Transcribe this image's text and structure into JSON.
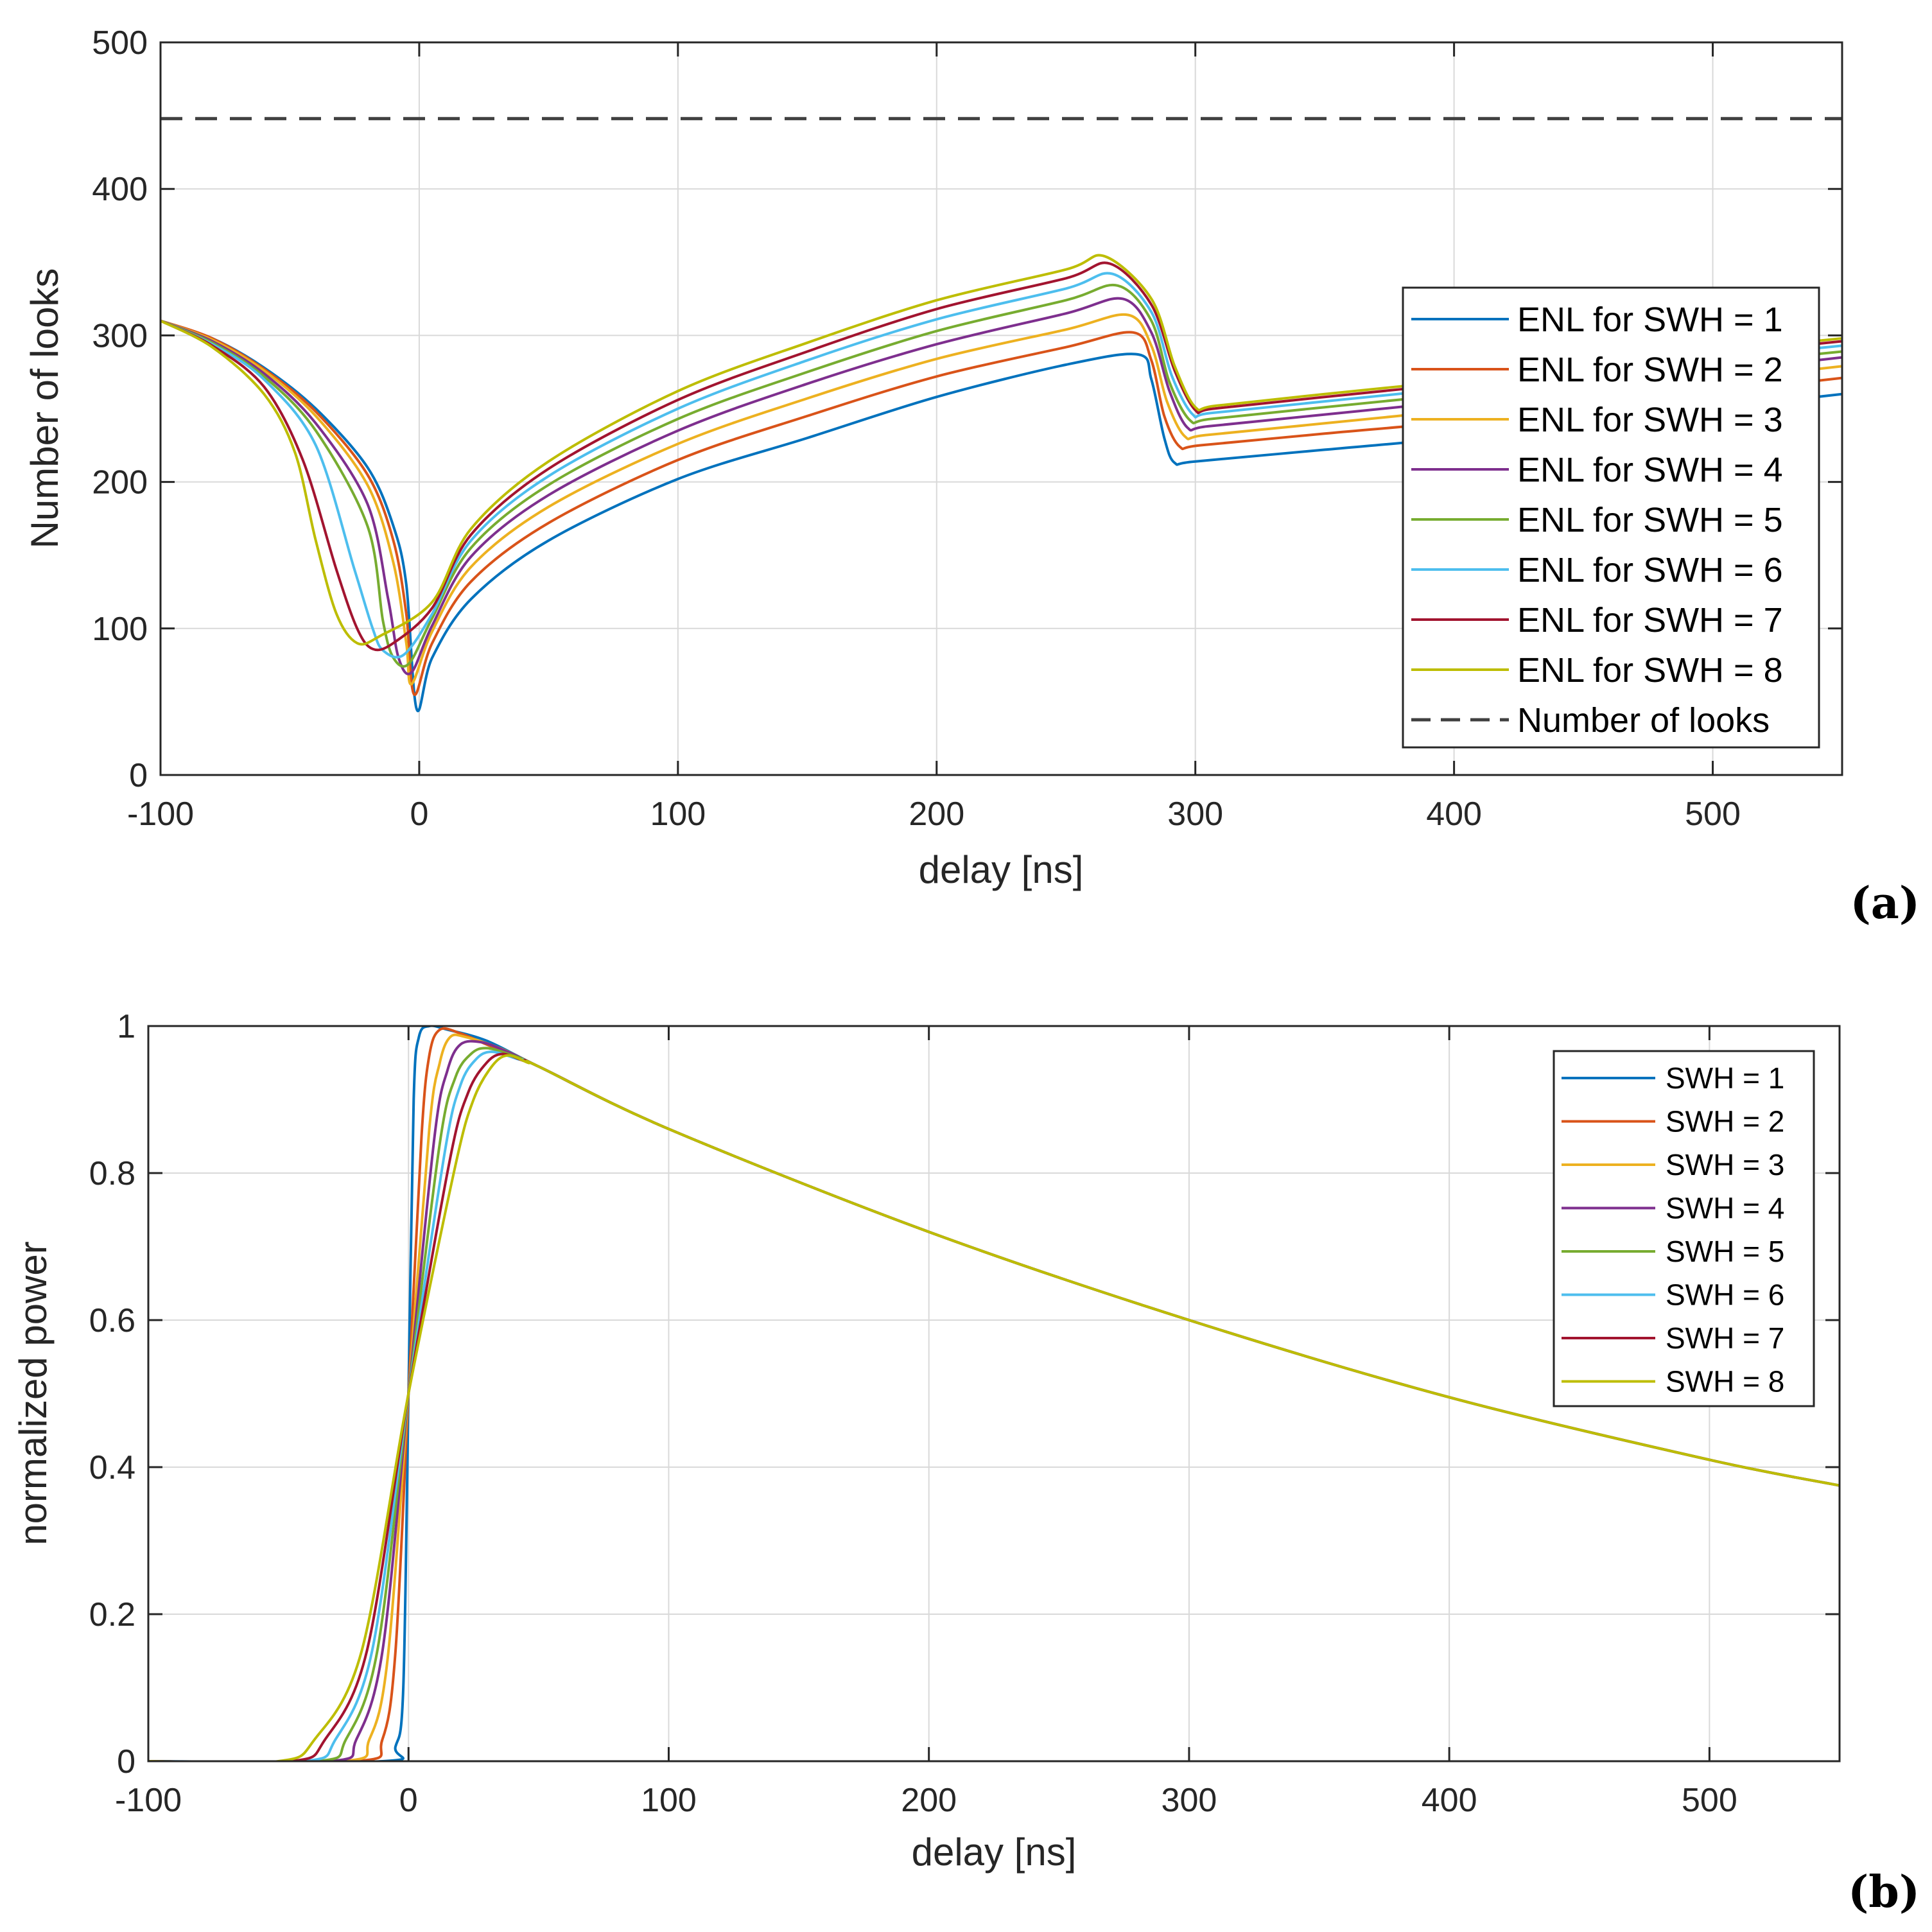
{
  "figure": {
    "panel_labels": [
      "(a)",
      "(b)"
    ]
  },
  "colors": {
    "series": [
      "#0072BD",
      "#D95319",
      "#EDB120",
      "#7E2F8E",
      "#77AC30",
      "#4DBEEE",
      "#A2142F",
      "#BDBD00"
    ],
    "dashed": "#404040",
    "axis": "#262626",
    "grid": "#d9d9d9"
  },
  "chart_data": [
    {
      "type": "line",
      "panel": "(a)",
      "title": "",
      "xlabel": "delay [ns]",
      "ylabel": "Number of looks",
      "xlim": [
        -100,
        550
      ],
      "ylim": [
        0,
        500
      ],
      "xticks": [
        -100,
        0,
        100,
        200,
        300,
        400,
        500
      ],
      "yticks": [
        0,
        100,
        200,
        300,
        400,
        500
      ],
      "xtick_labels": [
        "-100",
        "0",
        "100",
        "200",
        "300",
        "400",
        "500"
      ],
      "ytick_labels": [
        "0",
        "100",
        "200",
        "300",
        "400",
        "500"
      ],
      "grid": true,
      "legend_position": "right",
      "series": [
        {
          "name": "ENL for SWH = 1",
          "x": [
            -100,
            -80,
            -60,
            -40,
            -20,
            -10,
            -5,
            -1,
            5,
            20,
            50,
            100,
            150,
            200,
            250,
            278,
            283,
            288,
            292,
            300,
            350,
            400,
            450,
            500,
            550
          ],
          "y": [
            310,
            298,
            278,
            250,
            210,
            170,
            130,
            45,
            80,
            120,
            160,
            202,
            230,
            258,
            280,
            287,
            270,
            230,
            213,
            214,
            222,
            230,
            240,
            250,
            260
          ]
        },
        {
          "name": "ENL for SWH = 2",
          "x": [
            -100,
            -80,
            -60,
            -40,
            -20,
            -10,
            -5,
            -2,
            5,
            20,
            50,
            100,
            150,
            200,
            250,
            276,
            283,
            288,
            294,
            302,
            350,
            400,
            450,
            500,
            550
          ],
          "y": [
            310,
            298,
            277,
            248,
            205,
            160,
            110,
            55,
            90,
            132,
            172,
            215,
            245,
            272,
            292,
            302,
            283,
            245,
            224,
            225,
            233,
            241,
            251,
            261,
            271
          ]
        },
        {
          "name": "ENL for SWH = 3",
          "x": [
            -100,
            -80,
            -60,
            -40,
            -20,
            -10,
            -5,
            -3,
            5,
            20,
            50,
            100,
            150,
            200,
            250,
            274,
            283,
            289,
            296,
            304,
            350,
            400,
            450,
            500,
            550
          ],
          "y": [
            310,
            297,
            276,
            245,
            198,
            145,
            90,
            62,
            98,
            142,
            183,
            226,
            257,
            284,
            304,
            314,
            293,
            255,
            231,
            232,
            240,
            249,
            259,
            269,
            279
          ]
        },
        {
          "name": "ENL for SWH = 4",
          "x": [
            -100,
            -80,
            -60,
            -40,
            -20,
            -12,
            -8,
            -3,
            5,
            20,
            50,
            100,
            150,
            200,
            250,
            272,
            283,
            290,
            297,
            305,
            350,
            400,
            450,
            500,
            550
          ],
          "y": [
            310,
            296,
            274,
            240,
            185,
            120,
            80,
            70,
            102,
            149,
            191,
            235,
            267,
            294,
            315,
            325,
            302,
            262,
            237,
            238,
            246,
            255,
            265,
            275,
            285
          ]
        },
        {
          "name": "ENL for SWH = 5",
          "x": [
            -100,
            -80,
            -60,
            -40,
            -20,
            -14,
            -10,
            -4,
            5,
            20,
            50,
            100,
            150,
            200,
            250,
            270,
            283,
            290,
            298,
            306,
            350,
            400,
            450,
            500,
            550
          ],
          "y": [
            310,
            295,
            272,
            235,
            170,
            105,
            80,
            76,
            107,
            155,
            198,
            243,
            275,
            303,
            324,
            334,
            310,
            268,
            242,
            243,
            251,
            260,
            270,
            280,
            289
          ]
        },
        {
          "name": "ENL for SWH = 6",
          "x": [
            -100,
            -80,
            -60,
            -40,
            -25,
            -18,
            -14,
            -6,
            5,
            20,
            50,
            100,
            150,
            200,
            250,
            268,
            283,
            291,
            299,
            306,
            350,
            400,
            450,
            500,
            550
          ],
          "y": [
            310,
            294,
            270,
            225,
            140,
            100,
            85,
            82,
            110,
            160,
            204,
            250,
            283,
            311,
            332,
            342,
            316,
            272,
            246,
            247,
            255,
            264,
            274,
            284,
            293
          ]
        },
        {
          "name": "ENL for SWH = 7",
          "x": [
            -100,
            -80,
            -60,
            -45,
            -32,
            -24,
            -18,
            -10,
            5,
            20,
            50,
            100,
            150,
            200,
            250,
            267,
            283,
            292,
            300,
            307,
            350,
            400,
            450,
            500,
            550
          ],
          "y": [
            310,
            293,
            265,
            215,
            140,
            100,
            86,
            90,
            114,
            164,
            209,
            256,
            289,
            318,
            339,
            349,
            321,
            276,
            249,
            250,
            258,
            267,
            277,
            287,
            296
          ]
        },
        {
          "name": "ENL for SWH = 8",
          "x": [
            -100,
            -80,
            -60,
            -48,
            -40,
            -32,
            -24,
            -15,
            5,
            20,
            50,
            100,
            150,
            200,
            250,
            265,
            283,
            292,
            300,
            308,
            350,
            400,
            450,
            500,
            550
          ],
          "y": [
            310,
            292,
            260,
            220,
            160,
            110,
            90,
            95,
            118,
            168,
            214,
            262,
            295,
            324,
            345,
            354,
            325,
            279,
            251,
            252,
            260,
            269,
            279,
            289,
            298
          ]
        },
        {
          "name": "Number of looks",
          "dashed": true,
          "x": [
            -100,
            550
          ],
          "y": [
            448,
            448
          ]
        }
      ]
    },
    {
      "type": "line",
      "panel": "(b)",
      "title": "",
      "xlabel": "delay [ns]",
      "ylabel": "normalized power",
      "xlim": [
        -100,
        550
      ],
      "ylim": [
        0,
        1
      ],
      "xticks": [
        -100,
        0,
        100,
        200,
        300,
        400,
        500
      ],
      "yticks": [
        0,
        0.2,
        0.4,
        0.6,
        0.8,
        1
      ],
      "xtick_labels": [
        "-100",
        "0",
        "100",
        "200",
        "300",
        "400",
        "500"
      ],
      "ytick_labels": [
        "0",
        "0.2",
        "0.4",
        "0.6",
        "0.8",
        "1"
      ],
      "grid": true,
      "legend_position": "top-right",
      "series": [
        {
          "name": "SWH = 1",
          "x": [
            -100,
            -10,
            -5,
            -2,
            0,
            2,
            4,
            8,
            15,
            30,
            50,
            100,
            200,
            300,
            400,
            500,
            550
          ],
          "y": [
            0,
            0,
            0.02,
            0.1,
            0.5,
            0.9,
            0.985,
            1.0,
            0.995,
            0.98,
            0.945,
            0.86,
            0.72,
            0.6,
            0.495,
            0.41,
            0.375
          ]
        },
        {
          "name": "SWH = 2",
          "x": [
            -100,
            -20,
            -10,
            -5,
            0,
            5,
            8,
            12,
            20,
            30,
            50,
            100,
            200,
            300,
            400,
            500,
            550
          ],
          "y": [
            0,
            0,
            0.03,
            0.15,
            0.5,
            0.85,
            0.96,
            0.995,
            0.99,
            0.975,
            0.945,
            0.86,
            0.72,
            0.6,
            0.495,
            0.41,
            0.375
          ]
        },
        {
          "name": "SWH = 3",
          "x": [
            -100,
            -25,
            -15,
            -8,
            0,
            8,
            12,
            16,
            22,
            35,
            50,
            100,
            200,
            300,
            400,
            500,
            550
          ],
          "y": [
            0,
            0,
            0.03,
            0.14,
            0.5,
            0.86,
            0.95,
            0.985,
            0.985,
            0.97,
            0.945,
            0.86,
            0.72,
            0.6,
            0.495,
            0.41,
            0.375
          ]
        },
        {
          "name": "SWH = 4",
          "x": [
            -100,
            -30,
            -20,
            -10,
            0,
            10,
            15,
            20,
            28,
            38,
            50,
            100,
            200,
            300,
            400,
            500,
            550
          ],
          "y": [
            0,
            0,
            0.03,
            0.15,
            0.5,
            0.85,
            0.94,
            0.975,
            0.978,
            0.965,
            0.945,
            0.86,
            0.72,
            0.6,
            0.495,
            0.41,
            0.375
          ]
        },
        {
          "name": "SWH = 5",
          "x": [
            -100,
            -35,
            -24,
            -12,
            0,
            12,
            18,
            24,
            30,
            40,
            50,
            100,
            200,
            300,
            400,
            500,
            550
          ],
          "y": [
            0,
            0,
            0.03,
            0.15,
            0.5,
            0.84,
            0.93,
            0.962,
            0.97,
            0.96,
            0.945,
            0.86,
            0.72,
            0.6,
            0.495,
            0.41,
            0.375
          ]
        },
        {
          "name": "SWH = 6",
          "x": [
            -100,
            -40,
            -28,
            -14,
            0,
            14,
            20,
            26,
            32,
            42,
            50,
            100,
            200,
            300,
            400,
            500,
            550
          ],
          "y": [
            0,
            0,
            0.03,
            0.15,
            0.5,
            0.83,
            0.92,
            0.955,
            0.965,
            0.955,
            0.945,
            0.86,
            0.72,
            0.6,
            0.495,
            0.41,
            0.375
          ]
        },
        {
          "name": "SWH = 7",
          "x": [
            -100,
            -45,
            -32,
            -16,
            0,
            16,
            23,
            30,
            36,
            44,
            50,
            100,
            200,
            300,
            400,
            500,
            550
          ],
          "y": [
            0,
            0,
            0.03,
            0.15,
            0.5,
            0.82,
            0.91,
            0.95,
            0.962,
            0.953,
            0.945,
            0.86,
            0.72,
            0.6,
            0.495,
            0.41,
            0.375
          ]
        },
        {
          "name": "SWH = 8",
          "x": [
            -100,
            -50,
            -36,
            -18,
            0,
            18,
            25,
            32,
            38,
            46,
            50,
            100,
            200,
            300,
            400,
            500,
            550
          ],
          "y": [
            0,
            0,
            0.03,
            0.15,
            0.5,
            0.81,
            0.9,
            0.945,
            0.96,
            0.95,
            0.945,
            0.86,
            0.72,
            0.6,
            0.495,
            0.41,
            0.375
          ]
        }
      ]
    }
  ]
}
